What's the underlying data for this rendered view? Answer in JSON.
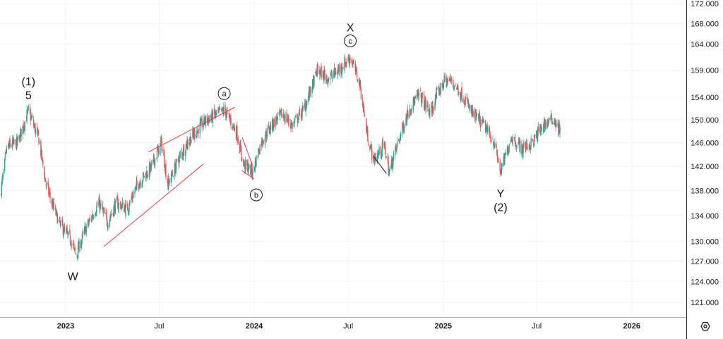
{
  "chart_data": {
    "type": "candlestick",
    "title": "",
    "y_scale": "log",
    "ylim": [
      119.5,
      173
    ],
    "y_ticks": [
      "172.000",
      "168.000",
      "164.000",
      "159.000",
      "154.000",
      "150.000",
      "146.000",
      "142.000",
      "138.000",
      "134.000",
      "130.000",
      "127.000",
      "124.000",
      "121.000"
    ],
    "x_ticks": [
      {
        "label": "2023",
        "date": "2023-01-01",
        "major": true
      },
      {
        "label": "Jul",
        "date": "2023-07-01",
        "major": false
      },
      {
        "label": "2024",
        "date": "2024-01-01",
        "major": true
      },
      {
        "label": "Jul",
        "date": "2024-07-01",
        "major": false
      },
      {
        "label": "2025",
        "date": "2025-01-01",
        "major": true
      },
      {
        "label": "Jul",
        "date": "2025-07-01",
        "major": false
      },
      {
        "label": "2026",
        "date": "2026-01-01",
        "major": true
      }
    ],
    "colors": {
      "up": "#26a69a",
      "down": "#ef5350",
      "trendline": "#f23645",
      "grid": "#f0f3fa",
      "axis": "#131722"
    },
    "price_path": [
      [
        "2022-08-27",
        137.0
      ],
      [
        "2022-09-10",
        145.4
      ],
      [
        "2022-09-30",
        146.0
      ],
      [
        "2022-10-21",
        151.6
      ],
      [
        "2022-11-10",
        146.5
      ],
      [
        "2022-11-24",
        139.0
      ],
      [
        "2022-12-07",
        135.6
      ],
      [
        "2022-12-21",
        132.6
      ],
      [
        "2023-01-12",
        130.0
      ],
      [
        "2023-01-21",
        127.8
      ],
      [
        "2023-02-07",
        131.6
      ],
      [
        "2023-03-06",
        136.0
      ],
      [
        "2023-03-23",
        133.0
      ],
      [
        "2023-04-09",
        136.0
      ],
      [
        "2023-04-30",
        135.0
      ],
      [
        "2023-05-20",
        139.0
      ],
      [
        "2023-06-17",
        142.0
      ],
      [
        "2023-07-05",
        146.0
      ],
      [
        "2023-07-18",
        139.0
      ],
      [
        "2023-08-04",
        142.4
      ],
      [
        "2023-08-24",
        146.0
      ],
      [
        "2023-09-27",
        149.8
      ],
      [
        "2023-11-05",
        151.7
      ],
      [
        "2023-11-28",
        147.8
      ],
      [
        "2023-12-11",
        142.4
      ],
      [
        "2023-12-29",
        141.0
      ],
      [
        "2024-01-14",
        146.0
      ],
      [
        "2024-02-03",
        149.0
      ],
      [
        "2024-02-24",
        151.0
      ],
      [
        "2024-03-15",
        149.0
      ],
      [
        "2024-04-05",
        151.7
      ],
      [
        "2024-04-25",
        156.7
      ],
      [
        "2024-05-02",
        159.0
      ],
      [
        "2024-05-23",
        157.5
      ],
      [
        "2024-06-12",
        159.0
      ],
      [
        "2024-07-05",
        161.5
      ],
      [
        "2024-07-23",
        156.7
      ],
      [
        "2024-08-06",
        147.8
      ],
      [
        "2024-08-19",
        143.0
      ],
      [
        "2024-09-09",
        145.5
      ],
      [
        "2024-09-18",
        141.0
      ],
      [
        "2024-10-06",
        146.2
      ],
      [
        "2024-10-27",
        152.0
      ],
      [
        "2024-11-16",
        154.5
      ],
      [
        "2024-12-07",
        151.0
      ],
      [
        "2024-12-20",
        154.5
      ],
      [
        "2025-01-03",
        157.0
      ],
      [
        "2025-01-17",
        157.0
      ],
      [
        "2025-02-06",
        154.5
      ],
      [
        "2025-02-27",
        151.0
      ],
      [
        "2025-03-19",
        149.2
      ],
      [
        "2025-04-09",
        146.2
      ],
      [
        "2025-04-22",
        141.0
      ],
      [
        "2025-05-13",
        147.0
      ],
      [
        "2025-06-02",
        145.0
      ],
      [
        "2025-06-23",
        146.0
      ],
      [
        "2025-07-13",
        149.0
      ],
      [
        "2025-08-03",
        150.3
      ],
      [
        "2025-08-17",
        147.6
      ]
    ],
    "trendlines": [
      {
        "color": "#f23645",
        "from": [
          "2023-06-10",
          144.4
        ],
        "to": [
          "2023-11-24",
          152.2
        ]
      },
      {
        "color": "#f23645",
        "from": [
          "2023-03-16",
          129.2
        ],
        "to": [
          "2023-09-25",
          142.4
        ]
      },
      {
        "color": "#f23645",
        "from": [
          "2023-12-09",
          146.9
        ],
        "to": [
          "2023-12-28",
          142.3
        ]
      },
      {
        "color": "#f23645",
        "from": [
          "2023-12-08",
          141.3
        ],
        "to": [
          "2024-01-01",
          139.9
        ]
      },
      {
        "color": "#131722",
        "from": [
          "2024-08-19",
          143.7
        ],
        "to": [
          "2024-09-13",
          140.8
        ]
      }
    ],
    "annotations": [
      {
        "text": "(1)",
        "date": "2022-10-21",
        "price": 157.0,
        "circled": false
      },
      {
        "text": "5",
        "date": "2022-10-21",
        "price": 154.5,
        "circled": false
      },
      {
        "text": "W",
        "date": "2023-01-15",
        "price": 124.8,
        "circled": false
      },
      {
        "text": "a",
        "date": "2023-11-04",
        "price": 154.7,
        "circled": true
      },
      {
        "text": "b",
        "date": "2024-01-05",
        "price": 137.3,
        "circled": true
      },
      {
        "text": "X",
        "date": "2024-07-05",
        "price": 167.3,
        "circled": false
      },
      {
        "text": "c",
        "date": "2024-07-05",
        "price": 164.6,
        "circled": true
      },
      {
        "text": "Y",
        "date": "2025-04-22",
        "price": 137.6,
        "circled": false
      },
      {
        "text": "(2)",
        "date": "2025-04-22",
        "price": 135.4,
        "circled": false
      }
    ]
  },
  "settings_icon": "gear-icon"
}
